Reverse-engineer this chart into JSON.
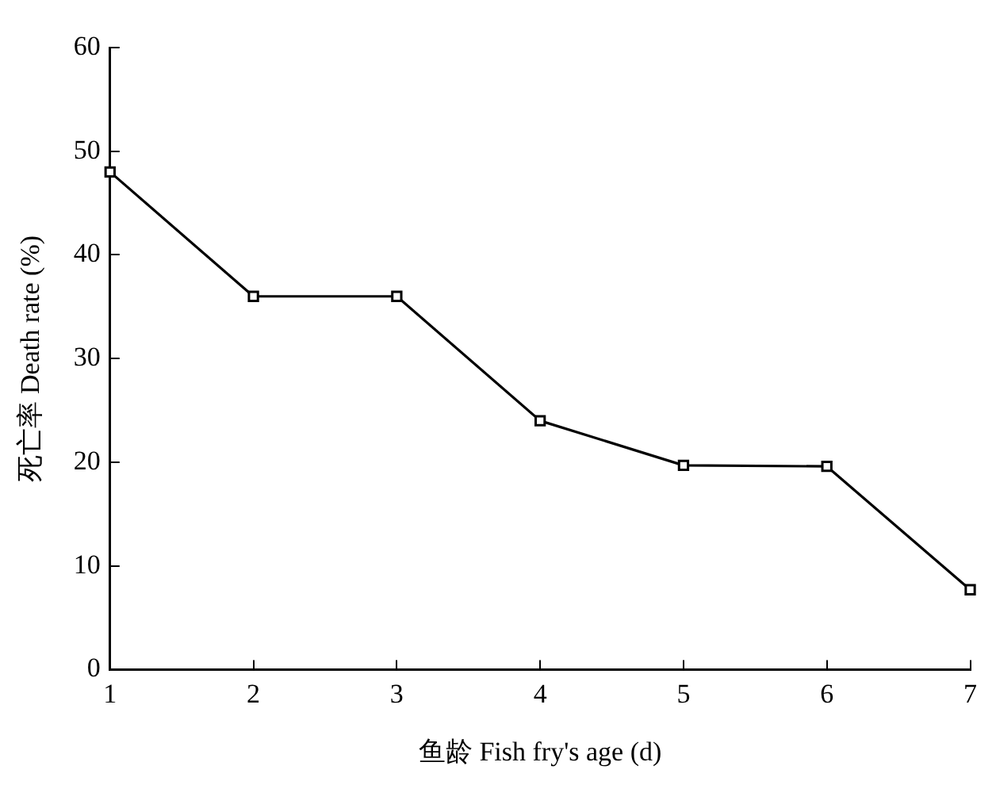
{
  "chart_data": {
    "type": "line",
    "xlabel": "鱼龄 Fish fry's age (d)",
    "ylabel": "死亡率 Death rate (%)",
    "x": [
      1,
      2,
      3,
      4,
      5,
      6,
      7
    ],
    "series": [
      {
        "color": "#000000",
        "values": [
          48,
          36,
          36,
          24,
          19.7,
          19.6,
          7.7
        ]
      }
    ],
    "xlim": [
      1,
      7
    ],
    "xticks": [
      1,
      2,
      3,
      4,
      5,
      6,
      7
    ],
    "ylim": [
      0,
      60
    ],
    "yticks": [
      0,
      10,
      20,
      30,
      40,
      50,
      60
    ],
    "marker": "square",
    "line_style": "solid",
    "grid": false,
    "legend": false
  }
}
